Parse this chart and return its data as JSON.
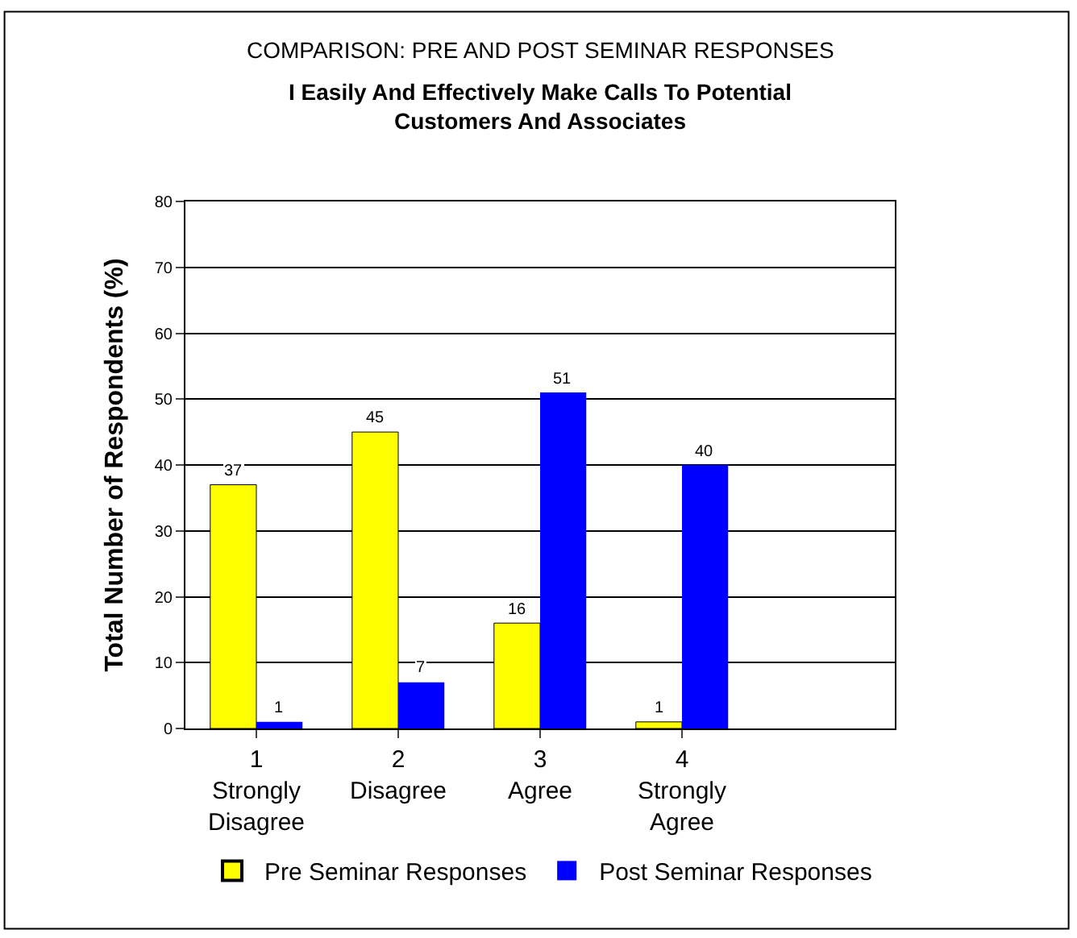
{
  "chart_data": {
    "type": "bar",
    "title": "COMPARISON: PRE AND POST SEMINAR RESPONSES",
    "subtitle": "I Easily And Effectively Make Calls To Potential\nCustomers And Associates",
    "ylabel": "Total Number of Respondents (%)",
    "categories": [
      "1\nStrongly\nDisagree",
      "2\nDisagree",
      "3\nAgree",
      "4\nStrongly\nAgree",
      null
    ],
    "series": [
      {
        "name": "Pre Seminar Responses",
        "color": "#ffff00",
        "values": [
          37,
          45,
          16,
          1,
          null
        ]
      },
      {
        "name": "Post Seminar Responses",
        "color": "#0000ff",
        "values": [
          1,
          7,
          51,
          40,
          null
        ]
      }
    ],
    "ylim": [
      0,
      80
    ],
    "yticks": [
      0,
      10,
      20,
      30,
      40,
      50,
      60,
      70,
      80
    ],
    "grid": "y",
    "legend": "bottom",
    "data_labels": true
  }
}
